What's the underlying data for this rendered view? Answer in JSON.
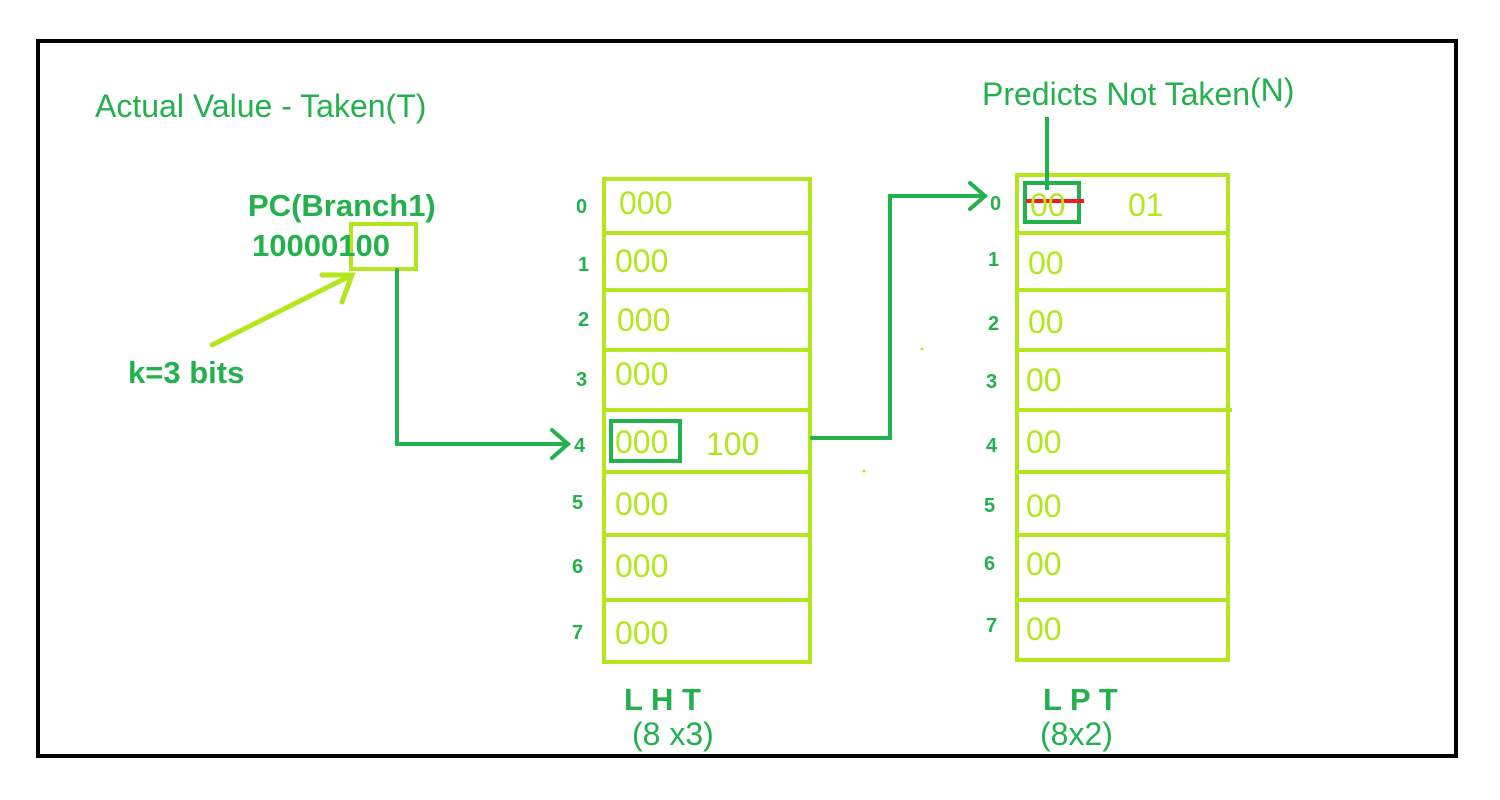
{
  "actual_value": "Actual Value - Taken(T)",
  "prediction": {
    "text": "Predicts Not Taken",
    "suffix": "(N)"
  },
  "pc": {
    "label": "PC(Branch1)",
    "prefix": "10000",
    "index_bits": "100"
  },
  "k_label": "k=3 bits",
  "lht": {
    "name": "L H T",
    "size": "(8 x3)",
    "rows": [
      {
        "index": "0",
        "value": "000"
      },
      {
        "index": "1",
        "value": "000"
      },
      {
        "index": "2",
        "value": "000"
      },
      {
        "index": "3",
        "value": "000"
      },
      {
        "index": "4",
        "value": "000",
        "updated": "100"
      },
      {
        "index": "5",
        "value": "000"
      },
      {
        "index": "6",
        "value": "000"
      },
      {
        "index": "7",
        "value": "000"
      }
    ]
  },
  "lpt": {
    "name": "L P T",
    "size": "(8x2)",
    "rows": [
      {
        "index": "0",
        "value": "00",
        "updated": "01"
      },
      {
        "index": "1",
        "value": "00"
      },
      {
        "index": "2",
        "value": "00"
      },
      {
        "index": "3",
        "value": "00"
      },
      {
        "index": "4",
        "value": "00"
      },
      {
        "index": "5",
        "value": "00"
      },
      {
        "index": "6",
        "value": "00"
      },
      {
        "index": "7",
        "value": "00"
      }
    ]
  },
  "colors": {
    "green": "#22b14c",
    "lime": "#b5e61d",
    "strike": "#ed1c24",
    "border": "#000000"
  }
}
